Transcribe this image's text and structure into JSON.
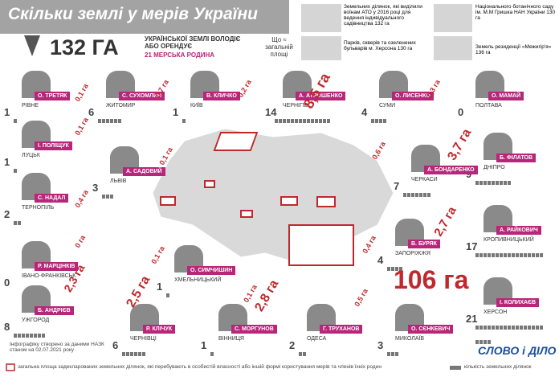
{
  "header": {
    "title": "Скільки землі у мерів України",
    "total": "132 ГА",
    "subtitle": "УКРАЇНСЬКОЇ ЗЕМЛІ ВОЛОДІЄ АБО ОРЕНДУЄ",
    "families": "21 МЕРСЬКА РОДИНА",
    "equals": "Що ≈ загальній площі"
  },
  "comparisons": [
    "Земельних ділянок, які виділили воїнам АТО у 2016 році для ведення індивідуального садівництва 132 га",
    "Національного ботанічного саду ім. М.М Гришка НАН України 130 га",
    "Парків, скверів та озеленених бульварів м. Херсона 130 га",
    "Земель резиденції «Межигір'я» 136 га"
  ],
  "mayors": [
    {
      "name": "О. ТРЕТЯК",
      "city": "РІВНЕ",
      "area": "0,1 га",
      "plots": 1
    },
    {
      "name": "С. СУХОМЛИН",
      "city": "ЖИТОМИР",
      "area": "0,7 га",
      "plots": 6
    },
    {
      "name": "В. КЛИЧКО",
      "city": "КИЇВ",
      "area": "0,2 га",
      "plots": 1
    },
    {
      "name": "А. АТРОШЕНКО",
      "city": "ЧЕРНІГІВ",
      "area": "8,5 га",
      "plots": 14
    },
    {
      "name": "О. ЛИСЕНКО",
      "city": "СУМИ",
      "area": "0,3 га",
      "plots": 4
    },
    {
      "name": "О. МАМАЙ",
      "city": "ПОЛТАВА",
      "plots": 0
    },
    {
      "name": "І. ПОЛІЩУК",
      "city": "ЛУЦЬК",
      "area": "0,1 га",
      "plots": 1
    },
    {
      "name": "Б. ФІЛАТОВ",
      "city": "ДНІПРО",
      "area": "3,7 га",
      "plots": 9
    },
    {
      "name": "А. САДОВИЙ",
      "city": "ЛЬВІВ",
      "area": "0,1 га",
      "plots": 3
    },
    {
      "name": "А. БОНДАРЕНКО",
      "city": "ЧЕРКАСИ",
      "area": "0,6 га",
      "plots": 7
    },
    {
      "name": "С. НАДАЛ",
      "city": "ТЕРНОПІЛЬ",
      "area": "0,4 га",
      "plots": 2
    },
    {
      "name": "А. РАЙКОВИЧ",
      "city": "КРОПИВНИЦЬКИЙ",
      "area": "2,7 га",
      "plots": 17
    },
    {
      "name": "В. БУРЯК",
      "city": "ЗАПОРІЖЖЯ",
      "area": "0,4 га",
      "plots": 4
    },
    {
      "name": "Р. МАРЦІНКІВ",
      "city": "ІВАНО-ФРАНКІВСЬК",
      "area": "0 га",
      "plots": 0
    },
    {
      "name": "О. СИМЧИШИН",
      "city": "ХМЕЛЬНИЦЬКИЙ",
      "area": "0,1 га",
      "plots": 1
    },
    {
      "name": "І. КОЛИХАЄВ",
      "city": "ХЕРСОН",
      "area": "106 га",
      "plots": 21
    },
    {
      "name": "Б. АНДРІЄВ",
      "city": "УЖГОРОД",
      "area": "2,3 га",
      "plots": 8
    },
    {
      "name": "Р. КЛІЧУК",
      "city": "ЧЕРНІВЦІ",
      "area": "2,5 га",
      "plots": 6
    },
    {
      "name": "С. МОРГУНОВ",
      "city": "ВІННИЦЯ",
      "area": "0,1 га",
      "plots": 1
    },
    {
      "name": "Г. ТРУХАНОВ",
      "city": "ОДЕСА",
      "area": "2,8 га",
      "plots": 2
    },
    {
      "name": "О. СЄНКЕВИЧ",
      "city": "МИКОЛАЇВ",
      "area": "0,5 га",
      "plots": 3
    }
  ],
  "footer": {
    "source": "Інфографіку створено за даними НАЗК станом на 02.07.2021 року",
    "legend_area": "загальна площа задекларованих земельних ділянок, які перебувають в особистій власності або іншій формі користування мерів та членів їхніх родин",
    "legend_plots": "кількість земельних ділянок",
    "logo": "СЛОВО і ДІЛО"
  }
}
